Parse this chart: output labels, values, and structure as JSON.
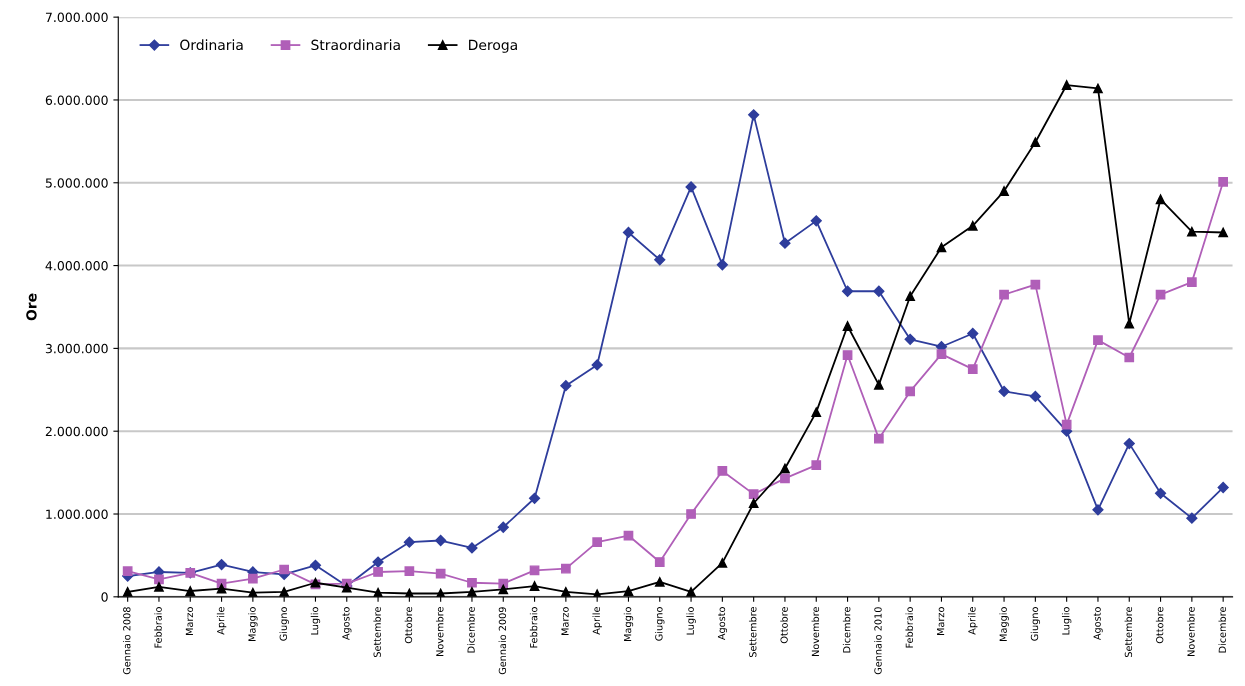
{
  "chart_data": {
    "type": "line",
    "ylabel": "Ore",
    "categories": [
      "Gennaio 2008",
      "Febbraio",
      "Marzo",
      "Aprile",
      "Maggio",
      "Giugno",
      "Luglio",
      "Agosto",
      "Settembre",
      "Ottobre",
      "Novembre",
      "Dicembre",
      "Gennaio 2009",
      "Febbraio",
      "Marzo",
      "Aprile",
      "Maggio",
      "Giugno",
      "Luglio",
      "Agosto",
      "Settembre",
      "Ottobre",
      "Novembre",
      "Dicembre",
      "Gennaio 2010",
      "Febbraio",
      "Marzo",
      "Aprile",
      "Maggio",
      "Giugno",
      "Luglio",
      "Agosto",
      "Settembre",
      "Ottobre",
      "Novembre",
      "Dicembre"
    ],
    "series": [
      {
        "name": "Ordinaria",
        "color": "#2e3d9c",
        "marker": "diamond",
        "values": [
          250000,
          300000,
          290000,
          390000,
          300000,
          270000,
          380000,
          130000,
          420000,
          660000,
          680000,
          590000,
          840000,
          1190000,
          2550000,
          2800000,
          4400000,
          4070000,
          4950000,
          4010000,
          5820000,
          4270000,
          4540000,
          3690000,
          3690000,
          3110000,
          3020000,
          3180000,
          2480000,
          2420000,
          2000000,
          1050000,
          1850000,
          1250000,
          950000,
          1320000
        ]
      },
      {
        "name": "Straordinaria",
        "color": "#b05fb8",
        "marker": "square",
        "values": [
          310000,
          210000,
          290000,
          160000,
          220000,
          330000,
          150000,
          160000,
          300000,
          310000,
          280000,
          170000,
          160000,
          320000,
          340000,
          660000,
          740000,
          420000,
          1000000,
          1520000,
          1240000,
          1430000,
          1590000,
          2920000,
          1910000,
          2480000,
          2930000,
          2750000,
          3650000,
          3770000,
          2080000,
          3100000,
          2890000,
          3650000,
          3800000,
          5010000
        ]
      },
      {
        "name": "Deroga",
        "color": "#000000",
        "marker": "triangle",
        "values": [
          60000,
          120000,
          70000,
          100000,
          50000,
          60000,
          170000,
          110000,
          50000,
          40000,
          40000,
          60000,
          90000,
          130000,
          60000,
          30000,
          70000,
          180000,
          60000,
          410000,
          1130000,
          1550000,
          2230000,
          3270000,
          2560000,
          3630000,
          4220000,
          4480000,
          4900000,
          5490000,
          6180000,
          6140000,
          3300000,
          4800000,
          4410000,
          4400000
        ]
      }
    ],
    "ylim": [
      0,
      7000000
    ],
    "yticks": [
      0,
      {
        "value": 1000000,
        "label": "1.000.000"
      },
      {
        "value": 2000000,
        "label": "2.000.000"
      },
      {
        "value": 3000000,
        "label": "3.000.000"
      },
      {
        "value": 4000000,
        "label": "4.000.000"
      },
      {
        "value": 5000000,
        "label": "5.000.000"
      },
      {
        "value": 6000000,
        "label": "6.000.000"
      },
      {
        "value": 7000000,
        "label": "7.000.000"
      }
    ],
    "grid": "y",
    "legend": "top left",
    "line_style": "solid"
  }
}
